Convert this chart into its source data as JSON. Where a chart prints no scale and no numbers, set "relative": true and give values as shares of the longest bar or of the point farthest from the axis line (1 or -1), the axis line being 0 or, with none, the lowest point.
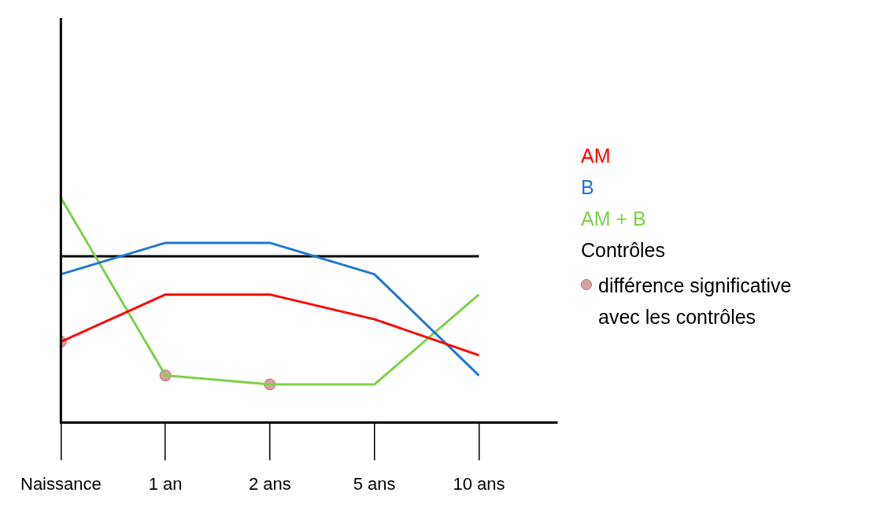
{
  "chart_data": {
    "type": "line",
    "relative": true,
    "categories": [
      "Naissance",
      "1 an",
      "2 ans",
      "5 ans",
      "10 ans"
    ],
    "series": [
      {
        "name": "AM",
        "color": "#ff0000",
        "values": [
          0.36,
          0.57,
          0.57,
          0.46,
          0.3
        ]
      },
      {
        "name": "B",
        "color": "#1f77d0",
        "values": [
          0.66,
          0.8,
          0.8,
          0.66,
          0.21
        ]
      },
      {
        "name": "AM + B",
        "color": "#7fd04a",
        "values": [
          1,
          0.21,
          0.17,
          0.17,
          0.57
        ]
      },
      {
        "name": "Contrôles",
        "color": "#000000",
        "values": [
          0.74,
          0.74,
          0.74,
          0.74,
          0.74
        ]
      },
      {
        "name": "différence significative avec les contrôles",
        "type": "scatter",
        "marker": "circle",
        "color": "#d9a0a0",
        "x": [
          "Naissance",
          "1 an",
          "2 ans"
        ],
        "values": [
          0.36,
          0.21,
          0.17
        ]
      }
    ],
    "ref_lines": [
      {
        "axis": "x",
        "value": "Naissance",
        "color": "#000000"
      }
    ],
    "marker": "none",
    "line_style": "solid",
    "grid": false,
    "legend": "right"
  }
}
